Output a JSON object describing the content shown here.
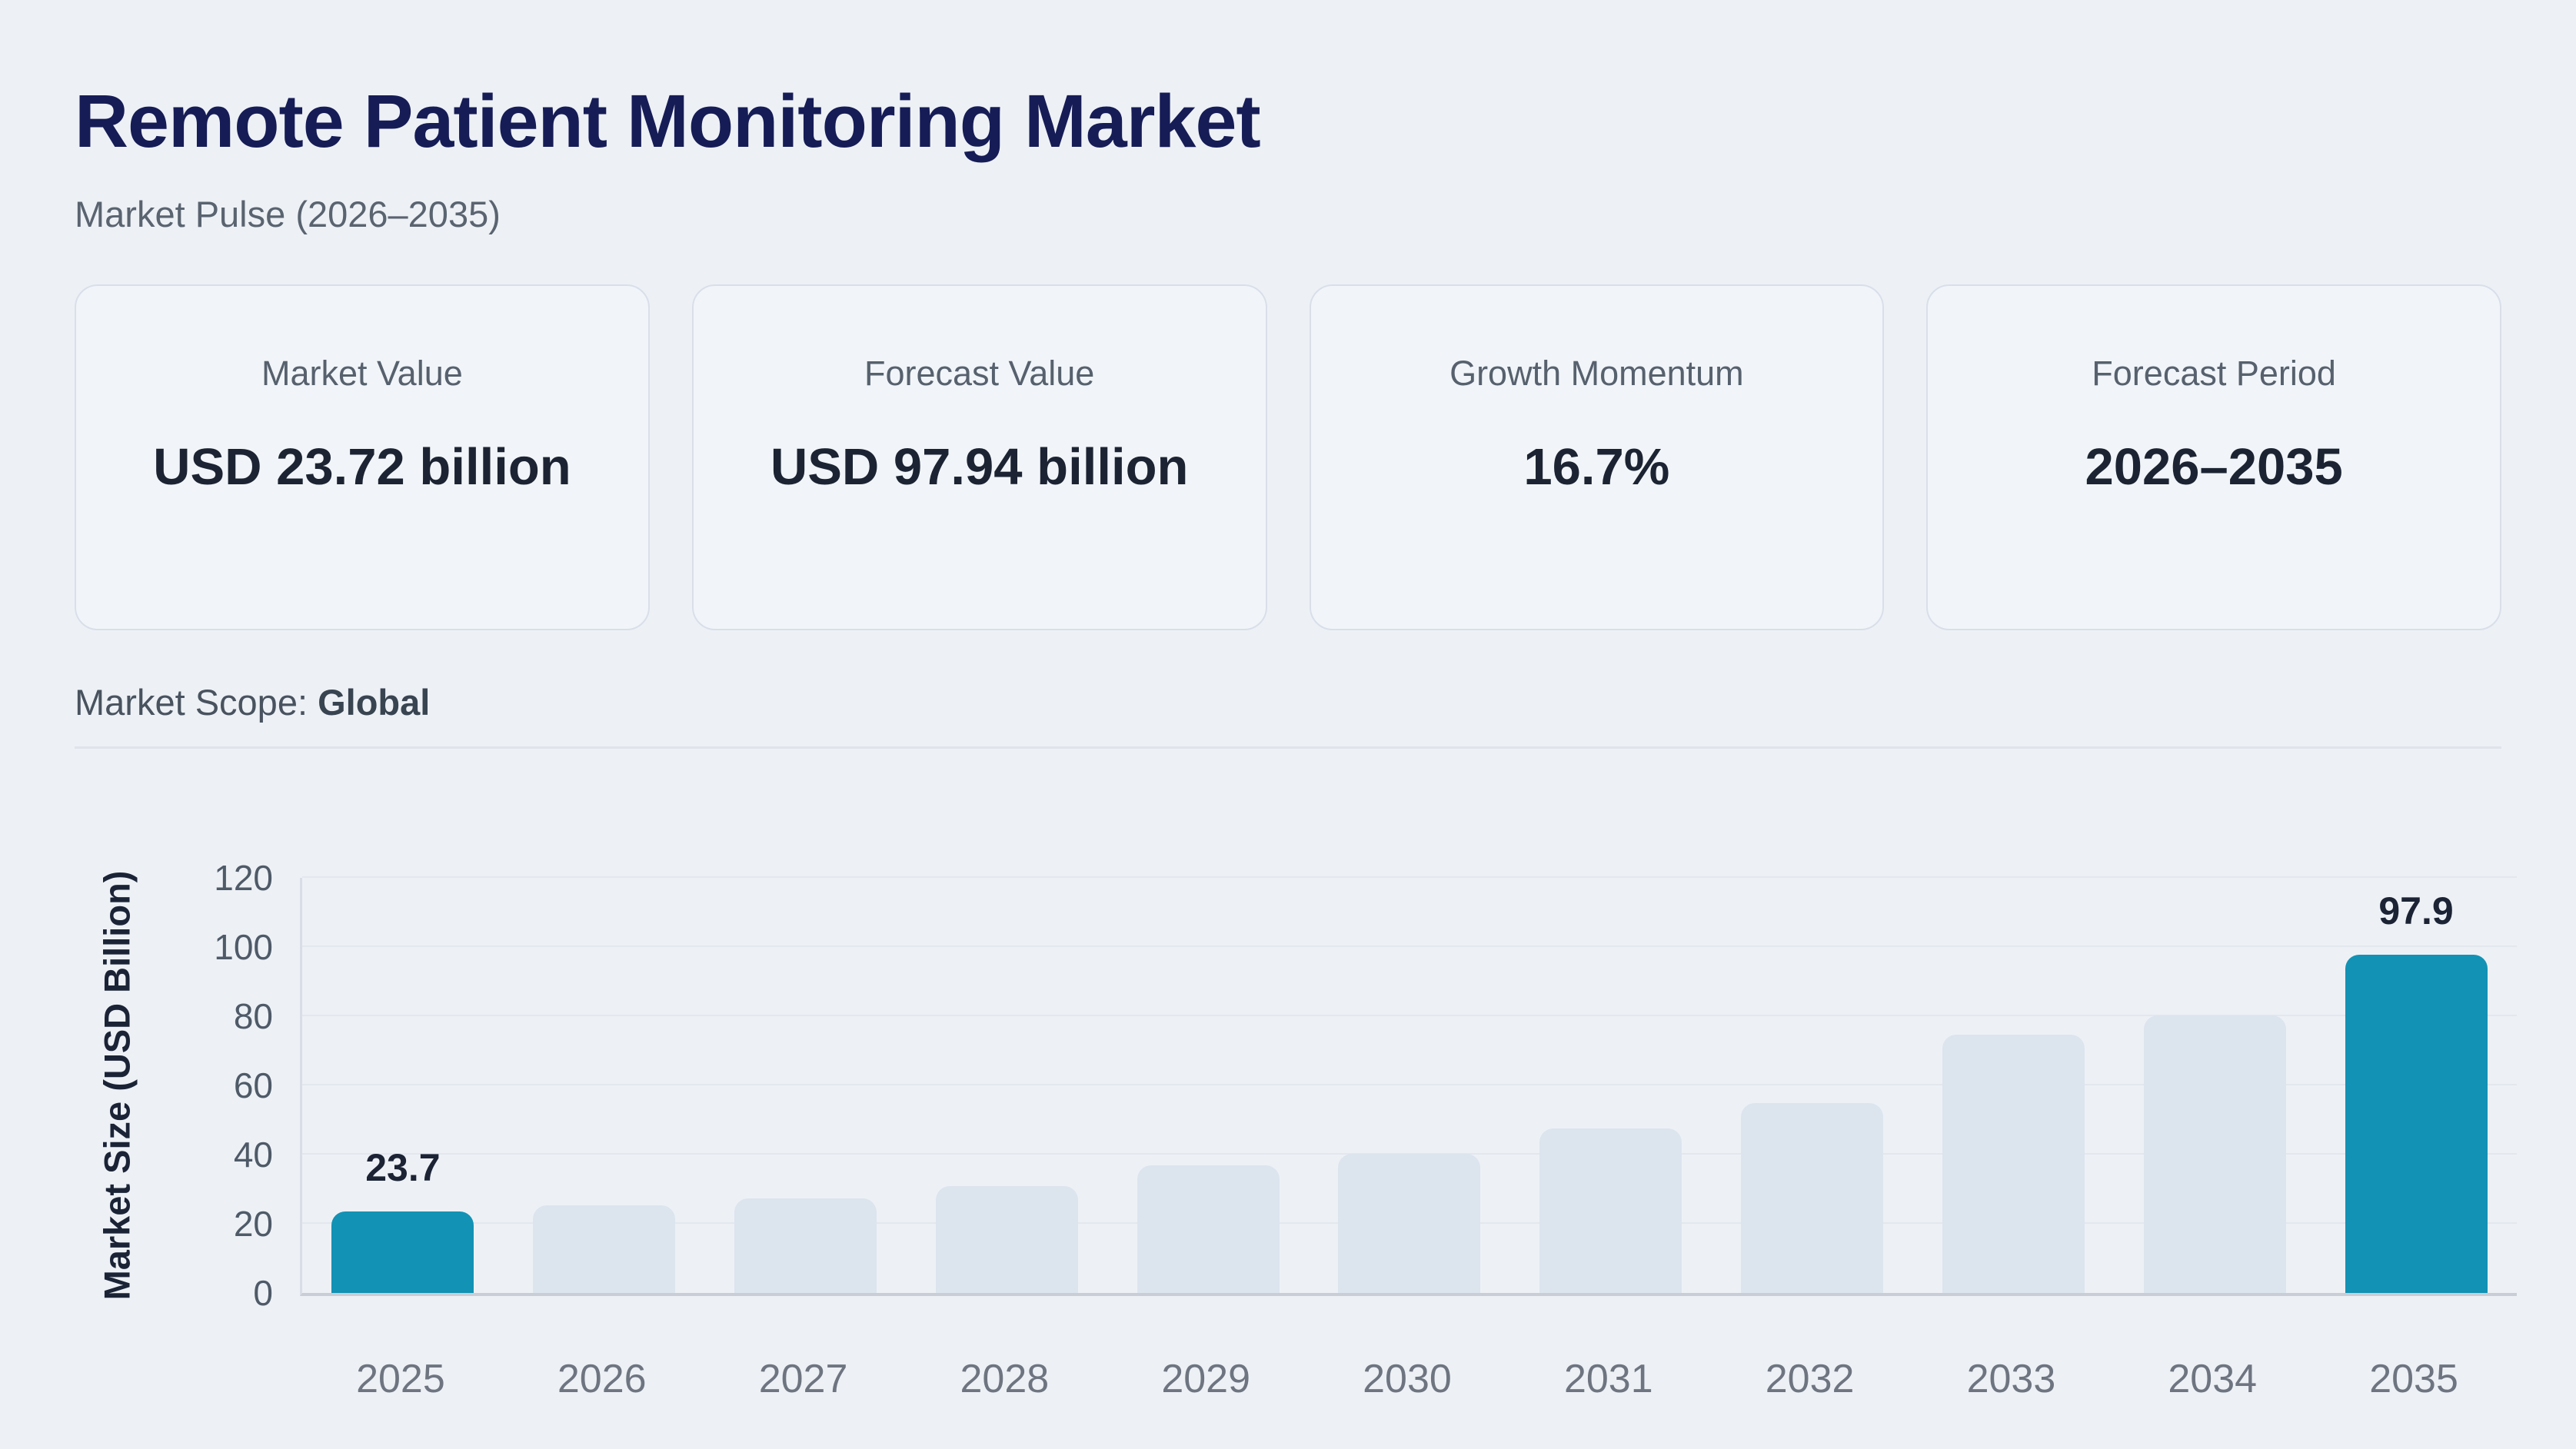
{
  "header": {
    "title": "Remote Patient Monitoring Market",
    "subtitle": "Market Pulse (2026–2035)"
  },
  "stat_cards": [
    {
      "label": "Market Value",
      "value": "USD 23.72 billion"
    },
    {
      "label": "Forecast Value",
      "value": "USD 97.94 billion"
    },
    {
      "label": "Growth Momentum",
      "value": "16.7%"
    },
    {
      "label": "Forecast Period",
      "value": "2026–2035"
    }
  ],
  "market_scope": {
    "label": "Market Scope:",
    "value": "Global"
  },
  "theme": {
    "page_background": "#edf1f6",
    "title_color": "#161c55",
    "accent_teal": "#1292b4",
    "muted_bar": "#dce4ee",
    "card_background": "#f1f5f9",
    "card_border": "#d9dfe9"
  },
  "chart_data": {
    "type": "bar",
    "title": "",
    "categories": [
      "2025",
      "2026",
      "2027",
      "2028",
      "2029",
      "2030",
      "2031",
      "2032",
      "2033",
      "2034",
      "2035"
    ],
    "values": [
      23.7,
      25.4,
      27.4,
      31.1,
      37.0,
      40.3,
      47.7,
      55.0,
      74.8,
      80.3,
      97.9
    ],
    "xlabel": "",
    "ylabel": "Market Size (USD Billion)",
    "ylim": [
      0,
      120
    ],
    "yticks": [
      0,
      20,
      40,
      60,
      80,
      100,
      120
    ],
    "grid": true,
    "legend": false,
    "highlight_indices": [
      0,
      10
    ],
    "annotations": [
      {
        "category": "2025",
        "text": "23.7"
      },
      {
        "category": "2035",
        "text": "97.9"
      }
    ],
    "colors": {
      "highlight_bar": "#1292b4",
      "default_bar": "#dce4ee"
    }
  }
}
